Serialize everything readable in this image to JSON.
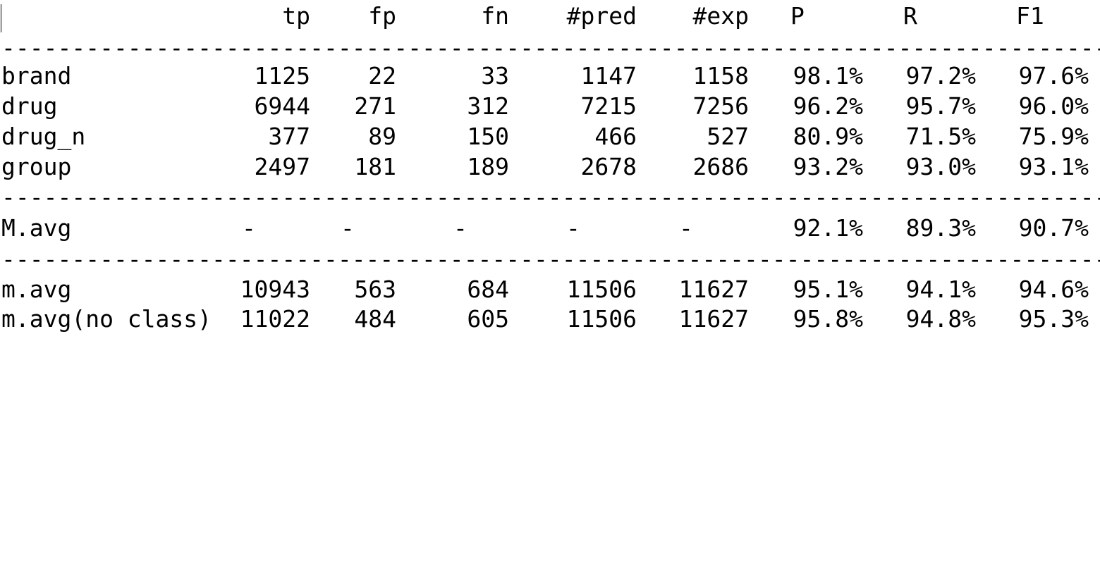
{
  "header": {
    "tp": "tp",
    "fp": "fp",
    "fn": "fn",
    "pred": "#pred",
    "exp": "#exp",
    "p": "P",
    "r": "R",
    "f1": "F1"
  },
  "separator": "--------------------------------------------------------------------------------",
  "rows": [
    {
      "label": "brand",
      "tp": "1125",
      "fp": "22",
      "fn": "33",
      "pred": "1147",
      "exp": "1158",
      "p": "98.1%",
      "r": "97.2%",
      "f1": "97.6%"
    },
    {
      "label": "drug",
      "tp": "6944",
      "fp": "271",
      "fn": "312",
      "pred": "7215",
      "exp": "7256",
      "p": "96.2%",
      "r": "95.7%",
      "f1": "96.0%"
    },
    {
      "label": "drug_n",
      "tp": "377",
      "fp": "89",
      "fn": "150",
      "pred": "466",
      "exp": "527",
      "p": "80.9%",
      "r": "71.5%",
      "f1": "75.9%"
    },
    {
      "label": "group",
      "tp": "2497",
      "fp": "181",
      "fn": "189",
      "pred": "2678",
      "exp": "2686",
      "p": "93.2%",
      "r": "93.0%",
      "f1": "93.1%"
    }
  ],
  "macro": {
    "label": "M.avg",
    "tp": "-",
    "fp": "-",
    "fn": "-",
    "pred": "-",
    "exp": "-",
    "p": "92.1%",
    "r": "89.3%",
    "f1": "90.7%"
  },
  "micro": [
    {
      "label": "m.avg",
      "tp": "10943",
      "fp": "563",
      "fn": "684",
      "pred": "11506",
      "exp": "11627",
      "p": "95.1%",
      "r": "94.1%",
      "f1": "94.6%"
    },
    {
      "label": "m.avg(no class)",
      "tp": "11022",
      "fp": "484",
      "fn": "605",
      "pred": "11506",
      "exp": "11627",
      "p": "95.8%",
      "r": "94.8%",
      "f1": "95.3%"
    }
  ]
}
